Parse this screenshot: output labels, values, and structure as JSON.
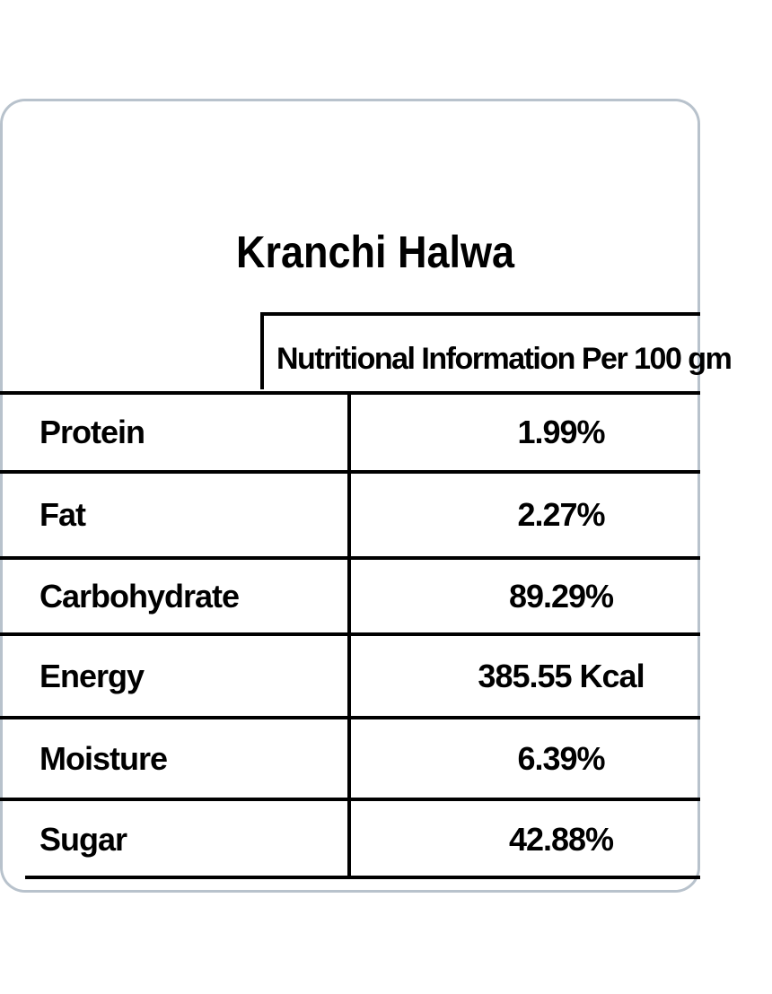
{
  "title": "Kranchi Halwa",
  "table": {
    "header": "Nutritional Information Per 100 gm",
    "rows": [
      [
        "Protein",
        "1.99%"
      ],
      [
        "Fat",
        "2.27%"
      ],
      [
        "Carbohydrate",
        "89.29%"
      ],
      [
        "Energy",
        "385.55 Kcal"
      ],
      [
        "Moisture",
        "6.39%"
      ],
      [
        "Sugar",
        "42.88%"
      ]
    ]
  }
}
